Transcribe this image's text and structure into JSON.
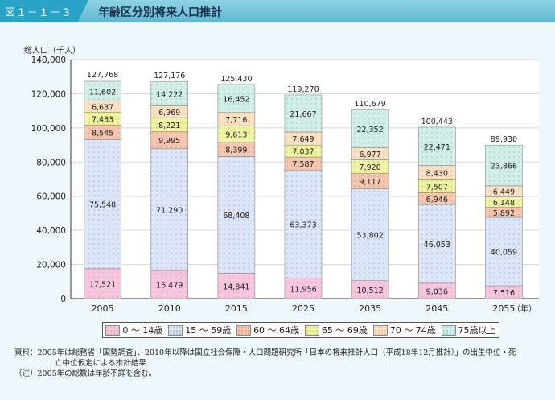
{
  "figure": {
    "label": "図１－１－３",
    "title": "年齢区分別将来人口推計"
  },
  "chart_data": {
    "type": "bar",
    "stacked": true,
    "ylabel": "総人口（千人）",
    "xunit": "（年）",
    "ylim": [
      0,
      140000
    ],
    "yticks": [
      0,
      20000,
      40000,
      60000,
      80000,
      100000,
      120000,
      140000
    ],
    "ytick_labels": [
      "0",
      "20,000",
      "40,000",
      "60,000",
      "80,000",
      "100,000",
      "120,000",
      "140,000"
    ],
    "categories": [
      "2005",
      "2010",
      "2015",
      "2025",
      "2035",
      "2045",
      "2055"
    ],
    "totals": [
      127768,
      127176,
      125430,
      119270,
      110679,
      100443,
      89930
    ],
    "total_labels": [
      "127,768",
      "127,176",
      "125,430",
      "119,270",
      "110,679",
      "100,443",
      "89,930"
    ],
    "series": [
      {
        "name": "0 ～ 14歳",
        "color": "#f6c6dc",
        "dot": "#e6a3c2",
        "values": [
          17521,
          16479,
          14841,
          11956,
          10512,
          9036,
          7516
        ],
        "labels": [
          "17,521",
          "16,479",
          "14,841",
          "11,956",
          "10,512",
          "9,036",
          "7,516"
        ]
      },
      {
        "name": "15 ～ 59歳",
        "color": "#dde6f6",
        "dot": "#9fb4dc",
        "values": [
          75548,
          71290,
          68408,
          63373,
          53802,
          46053,
          40059
        ],
        "labels": [
          "75,548",
          "71,290",
          "68,408",
          "63,373",
          "53,802",
          "46,053",
          "40,059"
        ]
      },
      {
        "name": "60 ～ 64歳",
        "color": "#f5c6b0",
        "dot": "#e39678",
        "values": [
          8545,
          9995,
          8399,
          7587,
          9117,
          6946,
          5892
        ],
        "labels": [
          "8,545",
          "9,995",
          "8,399",
          "7,587",
          "9,117",
          "6,946",
          "5,892"
        ]
      },
      {
        "name": "65 ～ 69歳",
        "color": "#eff3a4",
        "dot": "#c7cf55",
        "values": [
          7433,
          8221,
          9613,
          7037,
          7920,
          7507,
          6148
        ],
        "labels": [
          "7,433",
          "8,221",
          "9,613",
          "7,037",
          "7,920",
          "7,507",
          "6,148"
        ]
      },
      {
        "name": "70 ～ 74歳",
        "color": "#fbe1c4",
        "dot": "#e7b98a",
        "values": [
          6637,
          6969,
          7716,
          7649,
          6977,
          8430,
          6449
        ],
        "labels": [
          "6,637",
          "6,969",
          "7,716",
          "7,649",
          "6,977",
          "8,430",
          "6,449"
        ]
      },
      {
        "name": "75歳以上",
        "color": "#d2eee8",
        "dot": "#8fc8bc",
        "values": [
          11602,
          14222,
          16452,
          21667,
          22352,
          22471,
          23866
        ],
        "labels": [
          "11,602",
          "14,222",
          "16,452",
          "21,667",
          "22,352",
          "22,471",
          "23,866"
        ]
      }
    ]
  },
  "notes": {
    "line1": "資料：2005年は総務省「国勢調査」、2010年以降は国立社会保障・人口問題研究所「日本の将来推計人口（平成18年12月推計）」の出生中位・死",
    "line2": "亡中位仮定による推計結果",
    "line3": "（注）2005年の総数は年齢不詳を含む。"
  }
}
